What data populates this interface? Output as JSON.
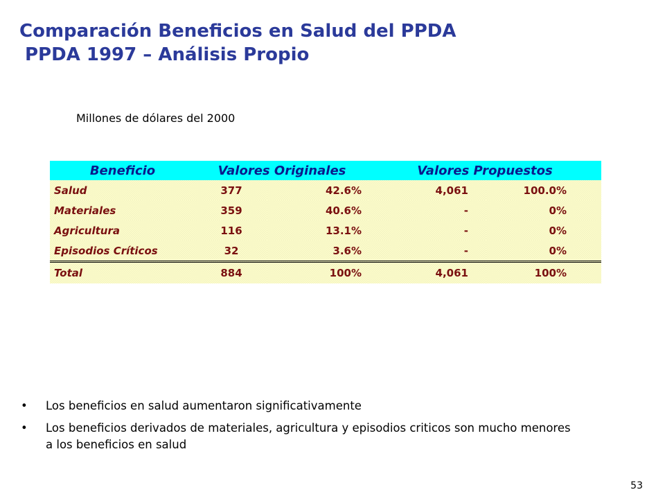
{
  "title": {
    "line1": "Comparación Beneficios en Salud del PPDA",
    "line2": "PPDA 1997 – Análisis Propio"
  },
  "subtitle": "Millones de dólares del 2000",
  "table": {
    "headers": {
      "beneficio": "Beneficio",
      "originales": "Valores Originales",
      "propuestos": "Valores  Propuestos"
    },
    "rows": [
      {
        "label": "Salud",
        "orig_value": "377",
        "orig_pct": "42.6%",
        "prop_value": "4,061",
        "prop_pct": "100.0%"
      },
      {
        "label": "Materiales",
        "orig_value": "359",
        "orig_pct": "40.6%",
        "prop_value": "-",
        "prop_pct": "0%"
      },
      {
        "label": "Agricultura",
        "orig_value": "116",
        "orig_pct": "13.1%",
        "prop_value": "-",
        "prop_pct": "0%"
      },
      {
        "label": "Episodios Críticos",
        "orig_value": "32",
        "orig_pct": "3.6%",
        "prop_value": "-",
        "prop_pct": "0%"
      }
    ],
    "total": {
      "label": "Total",
      "orig_value": "884",
      "orig_pct": "100%",
      "prop_value": "4,061",
      "prop_pct": "100%"
    },
    "colors": {
      "header_bg": "#00ffff",
      "header_text": "#0a1a8c",
      "body_bg": "#ffffcc",
      "body_text": "#7a1010"
    }
  },
  "bullets": [
    "Los beneficios en salud aumentaron significativamente",
    "Los beneficios derivados de materiales, agricultura y episodios criticos son mucho menores a los beneficios en salud"
  ],
  "bullet_symbol": "•",
  "page_number": "53",
  "colors": {
    "title": "#2b3a9a"
  }
}
